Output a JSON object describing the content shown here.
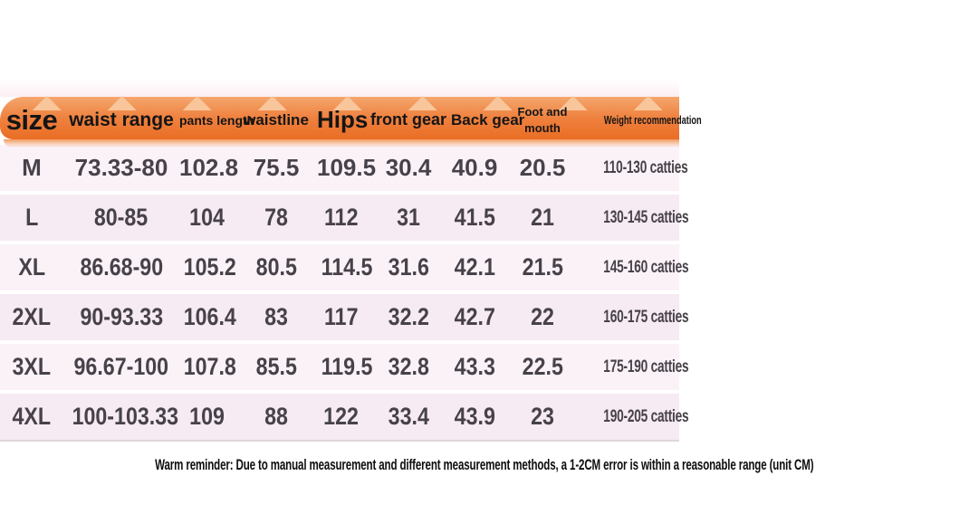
{
  "chart_data": {
    "type": "table",
    "title": "",
    "columns": [
      "size",
      "waist range",
      "pants length",
      "waistline",
      "Hips",
      "front gear",
      "Back gear",
      "Foot and mouth",
      "Weight recommendation"
    ],
    "rows": [
      [
        "M",
        "73.33-80",
        "102.8",
        "75.5",
        "109.5",
        "30.4",
        "40.9",
        "20.5",
        "110-130 catties"
      ],
      [
        "L",
        "80-85",
        "104",
        "78",
        "112",
        "31",
        "41.5",
        "21",
        "130-145 catties"
      ],
      [
        "XL",
        "86.68-90",
        "105.2",
        "80.5",
        "114.5",
        "31.6",
        "42.1",
        "21.5",
        "145-160 catties"
      ],
      [
        "2XL",
        "90-93.33",
        "106.4",
        "83",
        "117",
        "32.2",
        "42.7",
        "22",
        "160-175 catties"
      ],
      [
        "3XL",
        "96.67-100",
        "107.8",
        "85.5",
        "119.5",
        "32.8",
        "43.3",
        "22.5",
        "175-190 catties"
      ],
      [
        "4XL",
        "100-103.33",
        "109",
        "88",
        "122",
        "33.4",
        "43.9",
        "23",
        "190-205 catties"
      ]
    ],
    "footnote": "Warm reminder: Due to manual measurement and different measurement methods, a 1-2CM error is within a reasonable range (unit CM)",
    "layout": {
      "header_position": "top",
      "unit": "CM",
      "row_striping": "alternating light pink"
    }
  },
  "colors": {
    "header_orange": "#ef8240",
    "header_orange_dark": "#e96d24",
    "header_bump_peach": "#fac89e",
    "glow_pink": "#fdeef2",
    "row_pink_light": "#fbf2f8",
    "row_pink": "#f6eaf3",
    "data_text": "#474249",
    "header_text": "#151515",
    "note_text": "#0e0e0e",
    "background": "#ffffff"
  }
}
